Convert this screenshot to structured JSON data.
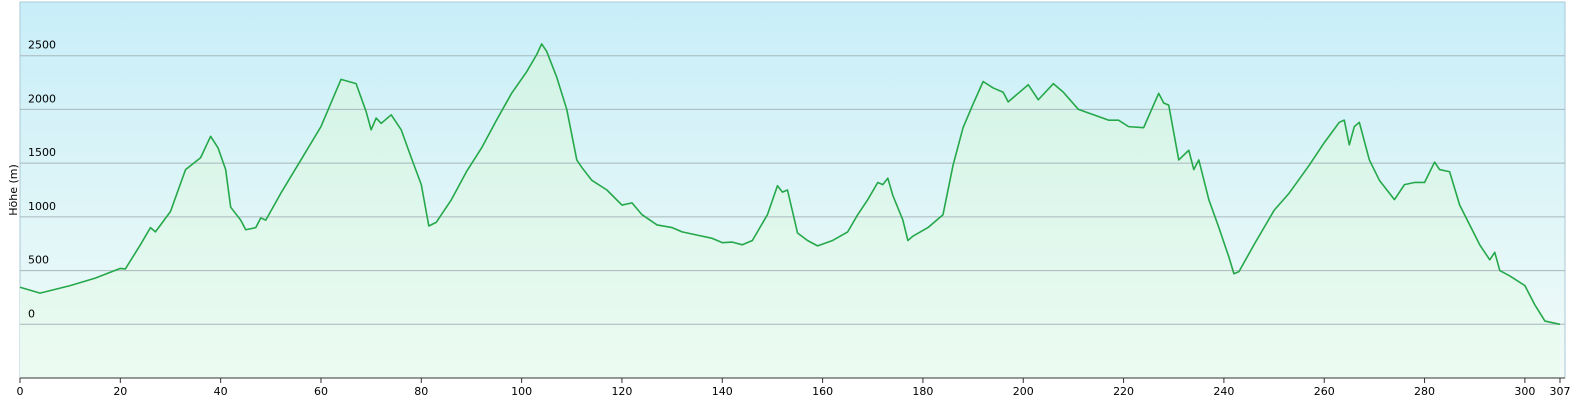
{
  "chart_data": {
    "type": "area",
    "ylabel": "Höhe (m)",
    "color": "#25a84a",
    "grid": true,
    "xlim": [
      0,
      308
    ],
    "xticks": [
      0,
      20,
      40,
      60,
      80,
      100,
      120,
      140,
      160,
      180,
      200,
      220,
      240,
      260,
      280,
      300,
      307
    ],
    "ylim": [
      -500,
      3000
    ],
    "yticks": [
      0,
      500,
      1000,
      1500,
      2000,
      2500
    ],
    "x": [
      0,
      4,
      10,
      15,
      20,
      21,
      24,
      26,
      27,
      30,
      33,
      36,
      38,
      39.5,
      41,
      42,
      44,
      45,
      47,
      48,
      49,
      52,
      56,
      60,
      64,
      67,
      69,
      70,
      71,
      72,
      74,
      76,
      78,
      80,
      81.5,
      83,
      86,
      89,
      92,
      95,
      98,
      101,
      103,
      104,
      105,
      107,
      109,
      111,
      112,
      114,
      117,
      120,
      122,
      124,
      127,
      130,
      132,
      135,
      138,
      140,
      142,
      144,
      146,
      149,
      151,
      152,
      153,
      155,
      157,
      159,
      162,
      165,
      167,
      169,
      171,
      172,
      173,
      174,
      176,
      177,
      178,
      181,
      184,
      186,
      188,
      190,
      192,
      194,
      196,
      197,
      199,
      201,
      203,
      206,
      208,
      211,
      214,
      217,
      219,
      221,
      224,
      227,
      228,
      229,
      231,
      233,
      234,
      235,
      237,
      239,
      241,
      242,
      243,
      246,
      250,
      253,
      257,
      260,
      263,
      264,
      265,
      266,
      267,
      269,
      271,
      274,
      276,
      278,
      280,
      282,
      283,
      285,
      287,
      289,
      291,
      293,
      294,
      295,
      297,
      300,
      302,
      304,
      307
    ],
    "values": [
      345,
      290,
      360,
      430,
      520,
      515,
      740,
      900,
      860,
      1050,
      1440,
      1550,
      1750,
      1640,
      1440,
      1090,
      970,
      880,
      900,
      990,
      970,
      1220,
      1530,
      1840,
      2280,
      2240,
      1980,
      1810,
      1920,
      1870,
      1950,
      1810,
      1550,
      1300,
      915,
      950,
      1160,
      1420,
      1640,
      1900,
      2150,
      2350,
      2510,
      2610,
      2540,
      2300,
      2000,
      1530,
      1460,
      1340,
      1250,
      1110,
      1130,
      1020,
      925,
      900,
      860,
      830,
      800,
      760,
      765,
      740,
      780,
      1020,
      1290,
      1230,
      1250,
      850,
      780,
      730,
      780,
      860,
      1020,
      1160,
      1320,
      1300,
      1360,
      1200,
      970,
      780,
      820,
      900,
      1020,
      1480,
      1830,
      2050,
      2260,
      2200,
      2160,
      2070,
      2150,
      2230,
      2090,
      2240,
      2160,
      2000,
      1950,
      1900,
      1900,
      1840,
      1830,
      2150,
      2060,
      2040,
      1530,
      1620,
      1440,
      1530,
      1160,
      900,
      625,
      470,
      490,
      740,
      1060,
      1220,
      1480,
      1690,
      1880,
      1900,
      1670,
      1840,
      1880,
      1530,
      1340,
      1160,
      1300,
      1320,
      1320,
      1510,
      1440,
      1420,
      1110,
      925,
      740,
      600,
      670,
      500,
      450,
      360,
      180,
      30,
      0
    ]
  }
}
